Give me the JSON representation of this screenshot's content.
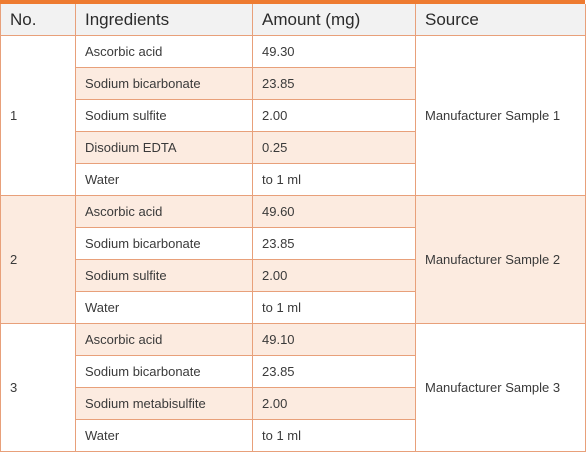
{
  "table": {
    "headers": [
      "No.",
      "Ingredients",
      "Amount (mg)",
      "Source"
    ],
    "groups": [
      {
        "no": "1",
        "source": "Manufacturer Sample 1",
        "rows": [
          {
            "ingredient": "Ascorbic acid",
            "amount": "49.30"
          },
          {
            "ingredient": "Sodium bicarbonate",
            "amount": "23.85"
          },
          {
            "ingredient": "Sodium sulfite",
            "amount": "2.00"
          },
          {
            "ingredient": "Disodium EDTA",
            "amount": "0.25"
          },
          {
            "ingredient": "Water",
            "amount": "to 1 ml"
          }
        ]
      },
      {
        "no": "2",
        "source": "Manufacturer Sample 2",
        "rows": [
          {
            "ingredient": "Ascorbic acid",
            "amount": "49.60"
          },
          {
            "ingredient": "Sodium bicarbonate",
            "amount": "23.85"
          },
          {
            "ingredient": "Sodium sulfite",
            "amount": "2.00"
          },
          {
            "ingredient": "Water",
            "amount": "to 1 ml"
          }
        ]
      },
      {
        "no": "3",
        "source": "Manufacturer Sample 3",
        "rows": [
          {
            "ingredient": "Ascorbic acid",
            "amount": "49.10"
          },
          {
            "ingredient": "Sodium bicarbonate",
            "amount": "23.85"
          },
          {
            "ingredient": "Sodium metabisulfite",
            "amount": "2.00"
          },
          {
            "ingredient": "Water",
            "amount": "to 1 ml"
          }
        ]
      }
    ]
  },
  "colors": {
    "accent": "#ee7b30",
    "header_bg": "#f2f2f2",
    "row_alt": "#fcebe0",
    "border": "#e8a07a"
  }
}
